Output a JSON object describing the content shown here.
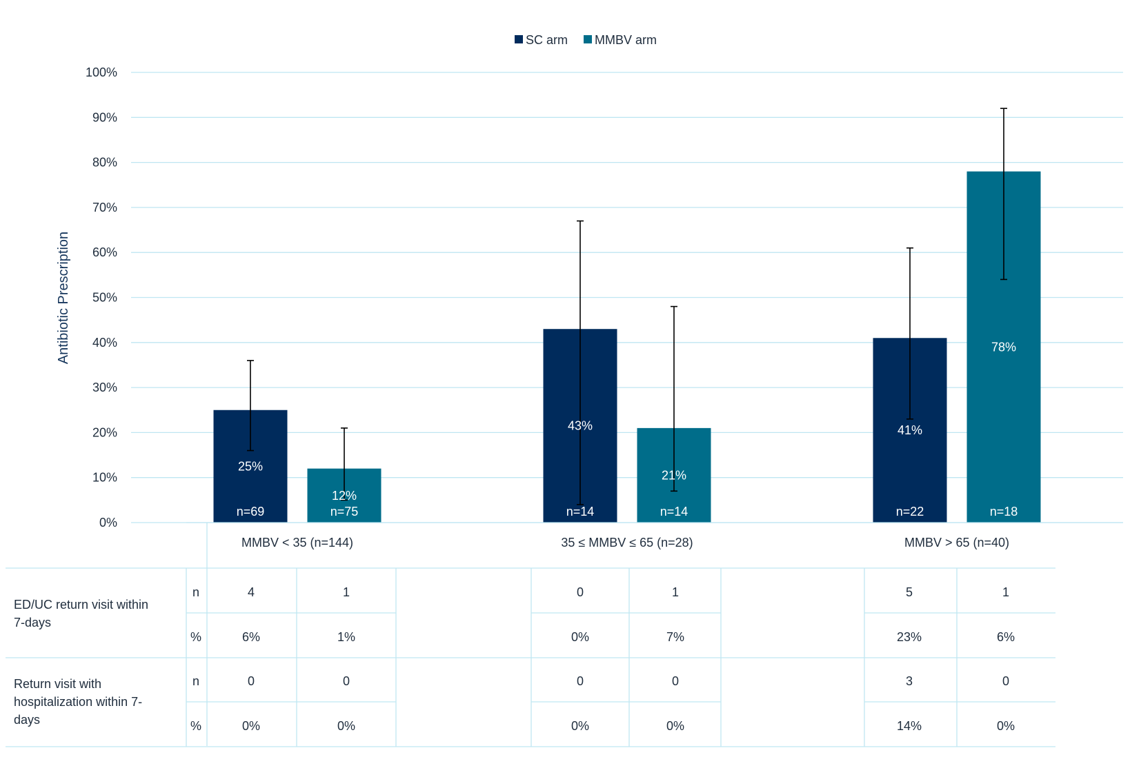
{
  "chart_data": {
    "type": "bar",
    "ylabel": "Antibiotic Prescription",
    "ylim": [
      0,
      100
    ],
    "yticks": [
      "0%",
      "10%",
      "20%",
      "30%",
      "40%",
      "50%",
      "60%",
      "70%",
      "80%",
      "90%",
      "100%"
    ],
    "legend_position": "top-center",
    "grid": true,
    "categories": [
      "MMBV < 35 (n=144)",
      "35 ≤ MMBV ≤ 65 (n=28)",
      "MMBV > 65 (n=40)"
    ],
    "series": [
      {
        "name": "SC arm",
        "color": "#002b5c",
        "values": [
          25,
          43,
          41
        ],
        "value_labels": [
          "25%",
          "43%",
          "41%"
        ],
        "n_labels": [
          "n=69",
          "n=14",
          "n=22"
        ],
        "error_low": [
          16,
          4,
          23
        ],
        "error_high": [
          36,
          67,
          61
        ]
      },
      {
        "name": "MMBV arm",
        "color": "#006d8a",
        "values": [
          12,
          21,
          78
        ],
        "value_labels": [
          "12%",
          "21%",
          "78%"
        ],
        "n_labels": [
          "n=75",
          "n=14",
          "n=18"
        ],
        "error_low": [
          5,
          7,
          54
        ],
        "error_high": [
          21,
          48,
          92
        ]
      }
    ],
    "colors": {
      "grid": "#bfe6f2",
      "table_line": "#bfe6f2",
      "axis_text": "#1f2d3d",
      "ylabel": "#16365c"
    }
  },
  "table": {
    "groups": [
      {
        "label": "ED/UC return visit within 7-days",
        "label_lines": [
          "ED/UC return visit within",
          "7-days"
        ],
        "rows": [
          {
            "unit": "n",
            "values": [
              "4",
              "1",
              "0",
              "1",
              "5",
              "1"
            ]
          },
          {
            "unit": "%",
            "values": [
              "6%",
              "1%",
              "0%",
              "7%",
              "23%",
              "6%"
            ]
          }
        ]
      },
      {
        "label": "Return visit with hospitalization within 7-days",
        "label_lines": [
          "Return visit with",
          "hospitalization within 7-",
          "days"
        ],
        "rows": [
          {
            "unit": "n",
            "values": [
              "0",
              "0",
              "0",
              "0",
              "3",
              "0"
            ]
          },
          {
            "unit": "%",
            "values": [
              "0%",
              "0%",
              "0%",
              "0%",
              "14%",
              "0%"
            ]
          }
        ]
      }
    ]
  }
}
